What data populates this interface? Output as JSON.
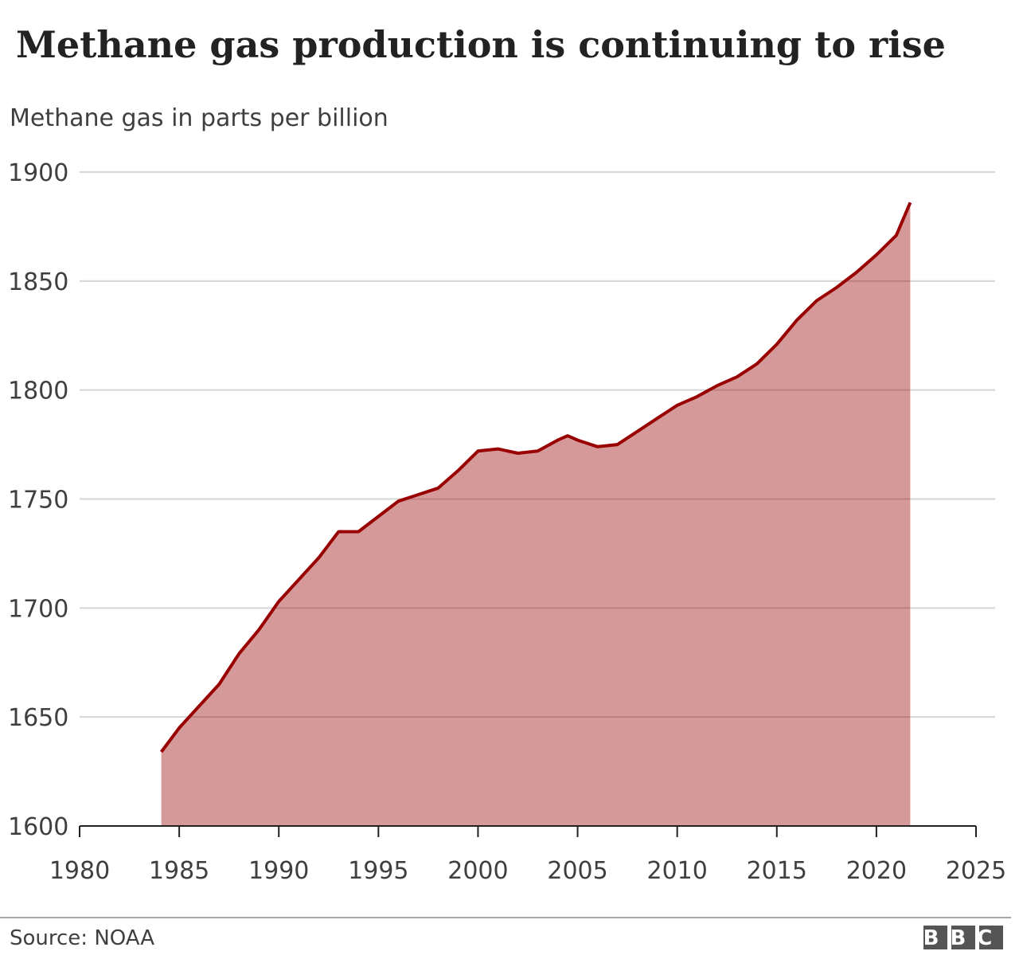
{
  "chart_data": {
    "type": "area",
    "title": "Methane gas production is continuing to rise",
    "subtitle": "Methane gas in parts per billion",
    "x": [
      1984.1,
      1985,
      1986,
      1987,
      1988,
      1989,
      1990,
      1991,
      1992,
      1993,
      1994,
      1995,
      1996,
      1997,
      1998,
      1999,
      2000,
      2001,
      2002,
      2003,
      2004,
      2004.5,
      2005,
      2006,
      2007,
      2008,
      2009,
      2010,
      2011,
      2012,
      2013,
      2014,
      2015,
      2016,
      2017,
      2018,
      2019,
      2020,
      2021,
      2021.7
    ],
    "values": [
      1634,
      1645,
      1655,
      1665,
      1679,
      1690,
      1703,
      1713,
      1723,
      1735,
      1735,
      1742,
      1749,
      1752,
      1755,
      1763,
      1772,
      1773,
      1771,
      1772,
      1777,
      1779,
      1777,
      1774,
      1775,
      1781,
      1787,
      1793,
      1797,
      1802,
      1806,
      1812,
      1821,
      1832,
      1841,
      1847,
      1854,
      1862,
      1871,
      1886
    ],
    "color": "#990000",
    "xlim": [
      1980,
      2025
    ],
    "xticks": [
      1980,
      1985,
      1990,
      1995,
      2000,
      2005,
      2010,
      2015,
      2020,
      2025
    ],
    "ylim": [
      1600,
      1900
    ],
    "yticks": [
      1600,
      1650,
      1700,
      1750,
      1800,
      1850,
      1900
    ],
    "grid": true,
    "source": "Source: NOAA",
    "logo": "BBC"
  }
}
